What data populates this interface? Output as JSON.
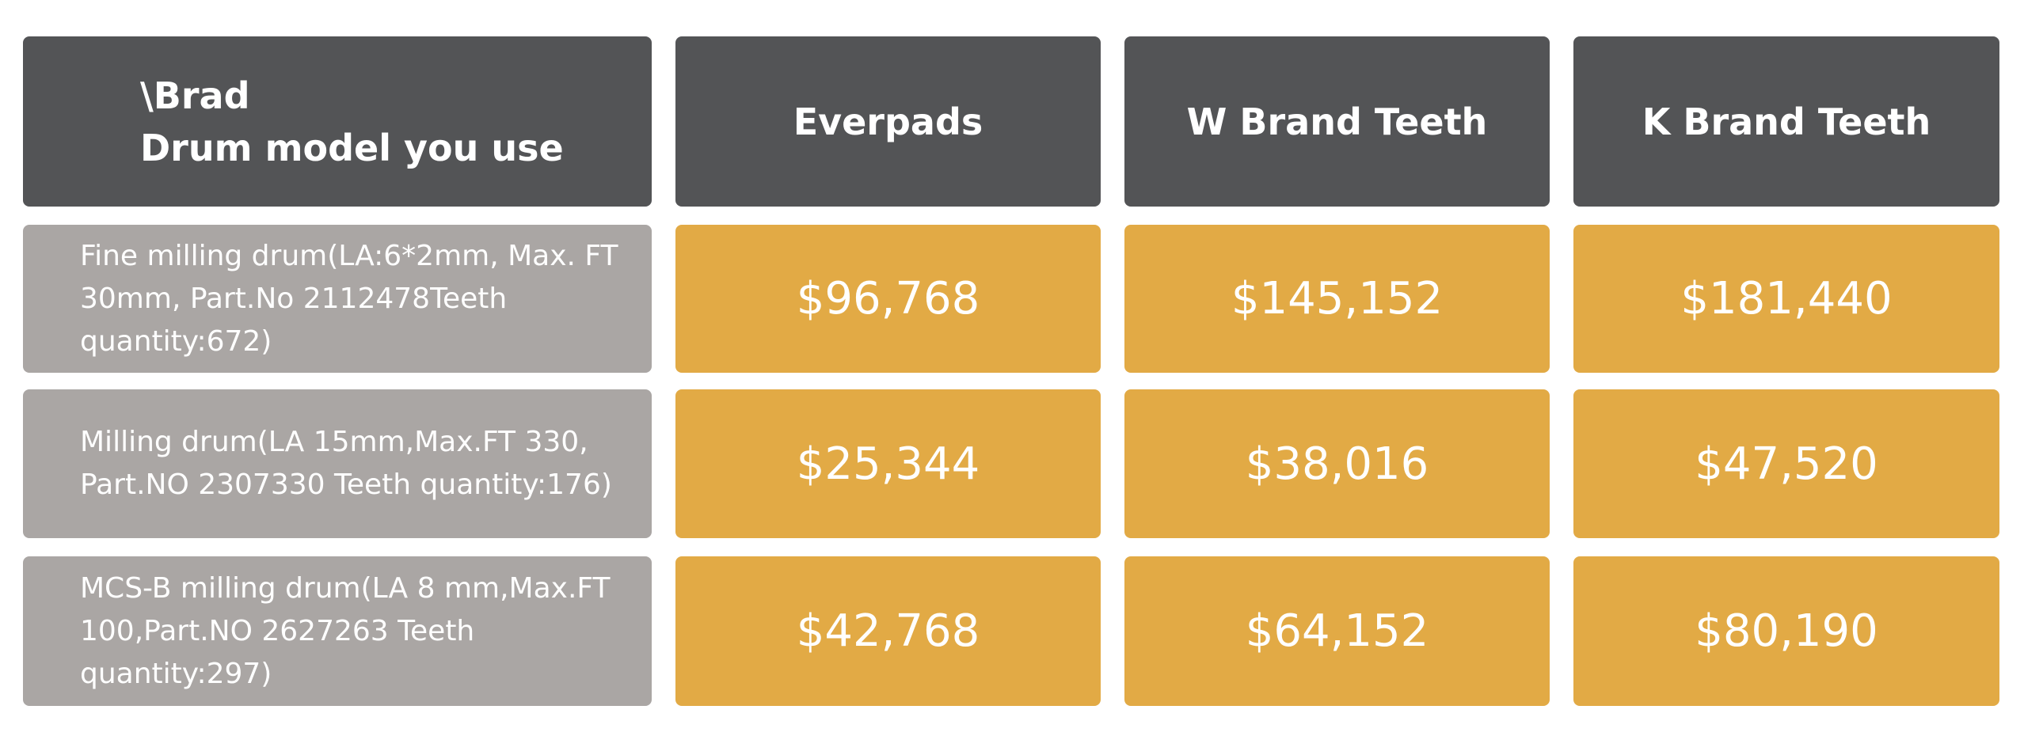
{
  "table": {
    "corner": [
      "\\Brad",
      "Drum model you use"
    ],
    "columns": [
      "Everpads",
      "W Brand Teeth",
      "K Brand Teeth"
    ],
    "rows": [
      {
        "label": "Fine milling drum(LA:6*2mm, Max. FT 30mm, Part.No 2112478Teeth quantity:672)",
        "prices": [
          "$96,768",
          "$145,152",
          "$181,440"
        ]
      },
      {
        "label": "Milling drum(LA 15mm,Max.FT 330, Part.NO 2307330 Teeth quantity:176)",
        "prices": [
          "$25,344",
          "$38,016",
          "$47,520"
        ]
      },
      {
        "label": "MCS-B milling drum(LA 8 mm,Max.FT 100,Part.NO 2627263 Teeth quantity:297)",
        "prices": [
          "$42,768",
          "$64,152",
          "$80,190"
        ]
      }
    ]
  }
}
